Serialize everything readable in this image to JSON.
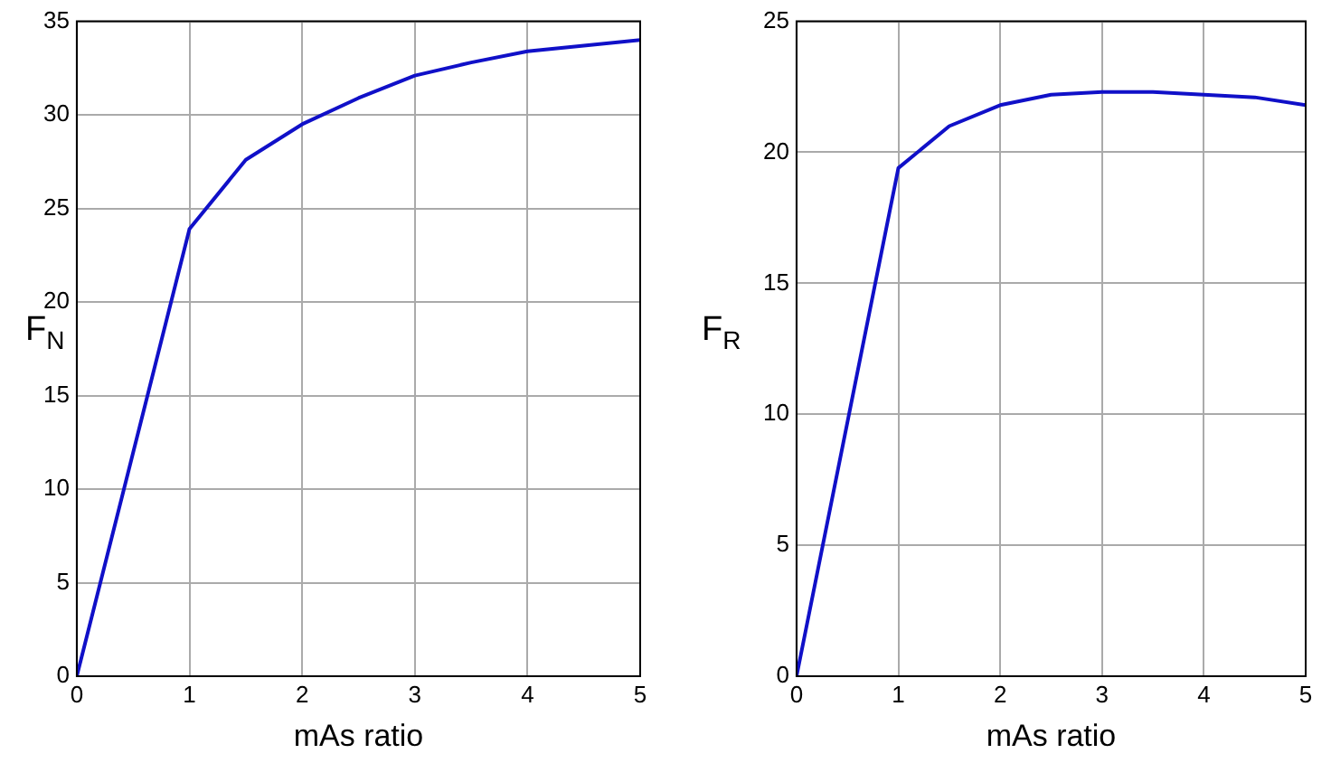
{
  "chart_data": [
    {
      "type": "line",
      "xlabel": "mAs ratio",
      "ylabel": "F$_{N}$",
      "x": [
        0,
        1,
        1.5,
        2,
        2.5,
        3,
        3.5,
        4,
        4.5,
        5
      ],
      "series": [
        {
          "color": "#1010c8",
          "values": [
            0,
            23.9,
            27.6,
            29.5,
            30.9,
            32.1,
            32.8,
            33.4,
            33.7,
            34.0
          ]
        }
      ],
      "xlim": [
        0,
        5
      ],
      "xticks": [
        0,
        1,
        2,
        3,
        4,
        5
      ],
      "ylim": [
        0,
        35
      ],
      "yticks": [
        0,
        5,
        10,
        15,
        20,
        25,
        30,
        35
      ],
      "grid": true,
      "line_style": "solid",
      "marker": "none"
    },
    {
      "type": "line",
      "xlabel": "mAs ratio",
      "ylabel": "F$_{R}$",
      "x": [
        0,
        1,
        1.5,
        2,
        2.5,
        3,
        3.5,
        4,
        4.5,
        5
      ],
      "series": [
        {
          "color": "#1010c8",
          "values": [
            0,
            19.4,
            21.0,
            21.8,
            22.2,
            22.3,
            22.3,
            22.2,
            22.1,
            21.8
          ]
        }
      ],
      "xlim": [
        0,
        5
      ],
      "xticks": [
        0,
        1,
        2,
        3,
        4,
        5
      ],
      "ylim": [
        0,
        25
      ],
      "yticks": [
        0,
        5,
        10,
        15,
        20,
        25
      ],
      "grid": true,
      "line_style": "solid",
      "marker": "none"
    }
  ]
}
